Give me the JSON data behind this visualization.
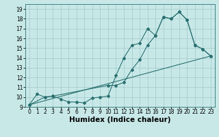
{
  "title": "",
  "xlabel": "Humidex (Indice chaleur)",
  "bg_color": "#c8e8e8",
  "line_color": "#2a7070",
  "xlim": [
    -0.5,
    23.5
  ],
  "ylim": [
    9,
    19.5
  ],
  "xticks": [
    0,
    1,
    2,
    3,
    4,
    5,
    6,
    7,
    8,
    9,
    10,
    11,
    12,
    13,
    14,
    15,
    16,
    17,
    18,
    19,
    20,
    21,
    22,
    23
  ],
  "yticks": [
    9,
    10,
    11,
    12,
    13,
    14,
    15,
    16,
    17,
    18,
    19
  ],
  "curve1_x": [
    0,
    1,
    2,
    3,
    4,
    5,
    6,
    7,
    8,
    9,
    10,
    11,
    12,
    13,
    14,
    15,
    16,
    17,
    18,
    19,
    20,
    21,
    22,
    23
  ],
  "curve1_y": [
    9.2,
    10.3,
    10.0,
    10.1,
    9.8,
    9.5,
    9.5,
    9.4,
    9.9,
    10.0,
    10.1,
    12.2,
    14.0,
    15.3,
    15.5,
    17.0,
    16.3,
    18.2,
    18.0,
    18.7,
    17.9,
    15.3,
    14.9,
    14.2
  ],
  "curve2_x": [
    0,
    2,
    3,
    10,
    11,
    12,
    13,
    14,
    15,
    16,
    17,
    18,
    19,
    20,
    21,
    22,
    23
  ],
  "curve2_y": [
    9.2,
    10.0,
    10.1,
    11.2,
    11.2,
    11.5,
    12.8,
    13.8,
    15.3,
    16.3,
    18.2,
    18.0,
    18.7,
    17.9,
    15.3,
    14.9,
    14.2
  ],
  "curve3_x": [
    0,
    23
  ],
  "curve3_y": [
    9.2,
    14.2
  ],
  "grid_color": "#a0c8c8",
  "fontsize_label": 7.5,
  "fontsize_tick": 5.5
}
